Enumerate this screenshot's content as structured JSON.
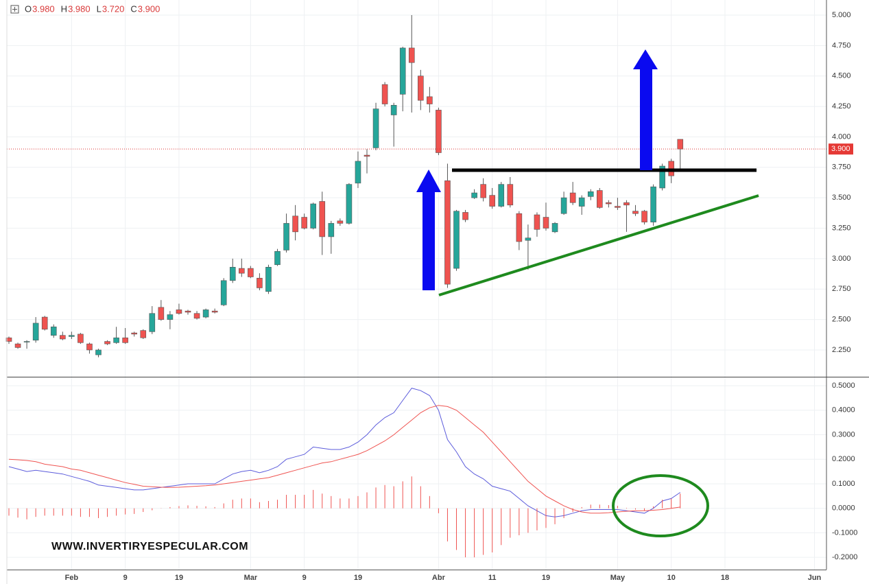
{
  "header": [
    {
      "key": "O",
      "value": "3.980"
    },
    {
      "key": "H",
      "value": "3.980"
    },
    {
      "key": "L",
      "value": "3.720"
    },
    {
      "key": "C",
      "value": "3.900"
    }
  ],
  "watermark": "WWW.INVERTIRYESPECULAR.COM",
  "chart_data": [
    {
      "type": "candlestick",
      "up_color": "#26a69a",
      "down_color": "#ef5350",
      "xlim": [
        -0.23,
        91.34
      ],
      "xticks": [
        {
          "value": 7,
          "label": "Feb"
        },
        {
          "value": 13,
          "label": "9"
        },
        {
          "value": 19,
          "label": "19"
        },
        {
          "value": 27,
          "label": "Mar"
        },
        {
          "value": 33,
          "label": "9"
        },
        {
          "value": 39,
          "label": "19"
        },
        {
          "value": 48,
          "label": "Abr"
        },
        {
          "value": 54,
          "label": "11"
        },
        {
          "value": 60,
          "label": "19"
        },
        {
          "value": 68,
          "label": "May"
        },
        {
          "value": 74,
          "label": "10"
        },
        {
          "value": 80,
          "label": "18"
        },
        {
          "value": 90,
          "label": "Jun"
        }
      ],
      "ylim": [
        2.03,
        5.124
      ],
      "yticks": [
        {
          "value": 2.25,
          "label": "2.250"
        },
        {
          "value": 2.5,
          "label": "2.500"
        },
        {
          "value": 2.75,
          "label": "2.750"
        },
        {
          "value": 3,
          "label": "3.000"
        },
        {
          "value": 3.25,
          "label": "3.250"
        },
        {
          "value": 3.5,
          "label": "3.500"
        },
        {
          "value": 3.75,
          "label": "3.750"
        },
        {
          "value": 4,
          "label": "4.000"
        },
        {
          "value": 4.25,
          "label": "4.250"
        },
        {
          "value": 4.5,
          "label": "4.500"
        },
        {
          "value": 4.75,
          "label": "4.750"
        },
        {
          "value": 5,
          "label": "5.000"
        }
      ],
      "grid": true,
      "last_price": {
        "value": 3.9,
        "label": "3.900"
      },
      "open": [
        2.35,
        2.3,
        2.32,
        2.33,
        2.52,
        2.37,
        2.37,
        2.36,
        2.38,
        2.3,
        2.21,
        2.32,
        2.31,
        2.35,
        2.39,
        2.41,
        2.4,
        2.6,
        2.5,
        2.58,
        2.57,
        2.55,
        2.52,
        2.57,
        2.62,
        2.82,
        2.92,
        2.92,
        2.84,
        2.73,
        2.95,
        3.07,
        3.35,
        3.34,
        3.25,
        3.47,
        3.18,
        3.31,
        3.29,
        3.62,
        3.85,
        3.91,
        4.43,
        4.18,
        4.35,
        4.73,
        4.5,
        4.33,
        4.22,
        3.64,
        2.92,
        3.38,
        3.5,
        3.61,
        3.52,
        3.43,
        3.61,
        3.37,
        3.15,
        3.36,
        3.34,
        3.22,
        3.37,
        3.54,
        3.43,
        3.51,
        3.56,
        3.46,
        3.43,
        3.46,
        3.39,
        3.39,
        3.3,
        3.58,
        3.8,
        3.98
      ],
      "high": [
        2.36,
        2.31,
        2.33,
        2.52,
        2.53,
        2.46,
        2.4,
        2.4,
        2.39,
        2.31,
        2.26,
        2.33,
        2.44,
        2.43,
        2.4,
        2.42,
        2.61,
        2.66,
        2.57,
        2.63,
        2.58,
        2.57,
        2.59,
        2.59,
        2.84,
        3.0,
        3.0,
        2.94,
        2.88,
        2.95,
        3.08,
        3.37,
        3.44,
        3.37,
        3.46,
        3.55,
        3.31,
        3.33,
        3.62,
        3.88,
        3.9,
        4.28,
        4.45,
        4.28,
        4.74,
        5.0,
        4.55,
        4.41,
        4.24,
        3.78,
        3.4,
        3.4,
        3.57,
        3.66,
        3.58,
        3.63,
        3.67,
        3.39,
        3.28,
        3.38,
        3.46,
        3.3,
        3.55,
        3.63,
        3.52,
        3.57,
        3.58,
        3.48,
        3.5,
        3.48,
        3.44,
        3.4,
        3.61,
        3.78,
        3.82,
        3.98
      ],
      "low": [
        2.3,
        2.26,
        2.26,
        2.31,
        2.41,
        2.35,
        2.33,
        2.34,
        2.3,
        2.22,
        2.19,
        2.29,
        2.3,
        2.3,
        2.36,
        2.34,
        2.38,
        2.49,
        2.42,
        2.54,
        2.54,
        2.5,
        2.51,
        2.55,
        2.61,
        2.8,
        2.85,
        2.84,
        2.74,
        2.71,
        2.94,
        3.05,
        3.15,
        3.24,
        3.24,
        3.03,
        3.04,
        3.27,
        3.28,
        3.58,
        3.7,
        3.89,
        4.25,
        3.92,
        4.21,
        4.2,
        4.22,
        4.2,
        3.85,
        2.76,
        2.9,
        3.3,
        3.49,
        3.47,
        3.41,
        3.42,
        3.42,
        3.07,
        2.91,
        3.18,
        3.23,
        3.21,
        3.36,
        3.44,
        3.36,
        3.48,
        3.41,
        3.42,
        3.4,
        3.22,
        3.35,
        3.28,
        3.27,
        3.56,
        3.62,
        3.72
      ],
      "close": [
        2.32,
        2.27,
        2.32,
        2.47,
        2.42,
        2.44,
        2.34,
        2.37,
        2.31,
        2.25,
        2.25,
        2.3,
        2.35,
        2.31,
        2.38,
        2.35,
        2.55,
        2.5,
        2.54,
        2.55,
        2.56,
        2.51,
        2.58,
        2.56,
        2.82,
        2.93,
        2.88,
        2.85,
        2.76,
        2.93,
        3.06,
        3.29,
        3.22,
        3.25,
        3.45,
        3.18,
        3.29,
        3.29,
        3.61,
        3.8,
        3.84,
        4.23,
        4.27,
        4.26,
        4.73,
        4.61,
        4.3,
        4.27,
        3.87,
        2.79,
        3.39,
        3.32,
        3.54,
        3.5,
        3.43,
        3.61,
        3.44,
        3.14,
        3.17,
        3.24,
        3.25,
        3.29,
        3.5,
        3.46,
        3.5,
        3.55,
        3.42,
        3.45,
        3.42,
        3.44,
        3.37,
        3.3,
        3.59,
        3.76,
        3.68,
        3.9
      ]
    },
    {
      "type": "macd",
      "ylim": [
        -0.25,
        0.531
      ],
      "yticks": [
        {
          "value": -0.2,
          "label": "-0.2000"
        },
        {
          "value": -0.1,
          "label": "-0.1000"
        },
        {
          "value": 0,
          "label": "0.0000"
        },
        {
          "value": 0.1,
          "label": "0.1000"
        },
        {
          "value": 0.2,
          "label": "0.2000"
        },
        {
          "value": 0.3,
          "label": "0.3000"
        },
        {
          "value": 0.4,
          "label": "0.4000"
        },
        {
          "value": 0.5,
          "label": "0.5000"
        }
      ],
      "series": [
        {
          "kind": "line",
          "color": "#5b5bdb",
          "values": [
            0.17,
            0.16,
            0.15,
            0.155,
            0.15,
            0.145,
            0.14,
            0.13,
            0.12,
            0.11,
            0.095,
            0.09,
            0.085,
            0.08,
            0.075,
            0.075,
            0.08,
            0.085,
            0.09,
            0.095,
            0.1,
            0.1,
            0.1,
            0.1,
            0.12,
            0.14,
            0.15,
            0.155,
            0.145,
            0.155,
            0.17,
            0.2,
            0.21,
            0.22,
            0.25,
            0.245,
            0.24,
            0.24,
            0.25,
            0.27,
            0.3,
            0.34,
            0.37,
            0.39,
            0.44,
            0.49,
            0.48,
            0.46,
            0.4,
            0.28,
            0.23,
            0.17,
            0.14,
            0.12,
            0.09,
            0.08,
            0.07,
            0.04,
            0.01,
            -0.01,
            -0.03,
            -0.035,
            -0.03,
            -0.02,
            -0.01,
            -0.005,
            -0.005,
            -0.005,
            -0.005,
            -0.01,
            -0.015,
            -0.02,
            0.0,
            0.03,
            0.04,
            0.065
          ]
        },
        {
          "kind": "line",
          "color": "#ef5350",
          "values": [
            0.2,
            0.198,
            0.195,
            0.19,
            0.18,
            0.175,
            0.17,
            0.16,
            0.155,
            0.145,
            0.135,
            0.125,
            0.115,
            0.105,
            0.098,
            0.09,
            0.088,
            0.086,
            0.085,
            0.086,
            0.088,
            0.09,
            0.092,
            0.095,
            0.1,
            0.105,
            0.11,
            0.115,
            0.12,
            0.125,
            0.135,
            0.145,
            0.155,
            0.165,
            0.175,
            0.185,
            0.19,
            0.2,
            0.21,
            0.22,
            0.235,
            0.255,
            0.275,
            0.3,
            0.33,
            0.36,
            0.39,
            0.41,
            0.42,
            0.415,
            0.4,
            0.37,
            0.34,
            0.31,
            0.27,
            0.23,
            0.19,
            0.15,
            0.11,
            0.08,
            0.05,
            0.03,
            0.01,
            -0.005,
            -0.015,
            -0.02,
            -0.02,
            -0.018,
            -0.015,
            -0.012,
            -0.01,
            -0.01,
            -0.008,
            -0.005,
            0.0,
            0.005
          ]
        },
        {
          "kind": "histogram",
          "color": "#ef5350",
          "values": [
            -0.03,
            -0.038,
            -0.045,
            -0.035,
            -0.03,
            -0.03,
            -0.03,
            -0.03,
            -0.035,
            -0.035,
            -0.04,
            -0.035,
            -0.03,
            -0.025,
            -0.023,
            -0.015,
            -0.008,
            -0.001,
            0.005,
            0.009,
            0.012,
            0.01,
            0.008,
            0.005,
            0.02,
            0.035,
            0.04,
            0.04,
            0.025,
            0.03,
            0.035,
            0.055,
            0.055,
            0.055,
            0.075,
            0.06,
            0.05,
            0.04,
            0.04,
            0.05,
            0.065,
            0.085,
            0.095,
            0.09,
            0.11,
            0.13,
            0.09,
            0.05,
            -0.02,
            -0.135,
            -0.17,
            -0.2,
            -0.2,
            -0.19,
            -0.18,
            -0.15,
            -0.12,
            -0.11,
            -0.1,
            -0.09,
            -0.08,
            -0.065,
            -0.04,
            -0.015,
            0.005,
            0.015,
            0.015,
            0.013,
            0.01,
            0.002,
            -0.005,
            -0.01,
            0.008,
            0.035,
            0.04,
            0.06
          ]
        }
      ]
    }
  ]
}
